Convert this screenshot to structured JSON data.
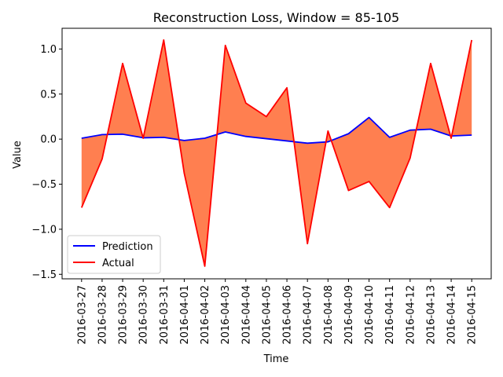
{
  "chart_data": {
    "type": "line",
    "title": "Reconstruction Loss, Window = 85-105",
    "xlabel": "Time",
    "ylabel": "Value",
    "categories": [
      "2016-03-27",
      "2016-03-28",
      "2016-03-29",
      "2016-03-30",
      "2016-03-31",
      "2016-04-01",
      "2016-04-02",
      "2016-04-03",
      "2016-04-04",
      "2016-04-05",
      "2016-04-06",
      "2016-04-07",
      "2016-04-08",
      "2016-04-09",
      "2016-04-10",
      "2016-04-11",
      "2016-04-12",
      "2016-04-13",
      "2016-04-14",
      "2016-04-15"
    ],
    "series": [
      {
        "name": "Prediction",
        "color": "#0000ff",
        "values": [
          0.01,
          0.05,
          0.055,
          0.015,
          0.02,
          -0.015,
          0.01,
          0.08,
          0.03,
          0.005,
          -0.02,
          -0.045,
          -0.03,
          0.06,
          0.24,
          0.02,
          0.1,
          0.11,
          0.035,
          0.045
        ]
      },
      {
        "name": "Actual",
        "color": "#ff0000",
        "values": [
          -0.76,
          -0.22,
          0.84,
          0.01,
          1.1,
          -0.38,
          -1.41,
          1.04,
          0.4,
          0.25,
          0.57,
          -1.16,
          0.09,
          -0.57,
          -0.47,
          -0.76,
          -0.21,
          0.84,
          0.01,
          1.1
        ]
      }
    ],
    "fill_color": "#ff7f50",
    "ylim": [
      -1.55,
      1.23
    ],
    "yticks": [
      -1.5,
      -1.0,
      -0.5,
      0.0,
      0.5,
      1.0
    ],
    "ytick_labels": [
      "−1.5",
      "−1.0",
      "−0.5",
      "0.0",
      "0.5",
      "1.0"
    ],
    "legend_position": "lower-left",
    "grid": false
  }
}
